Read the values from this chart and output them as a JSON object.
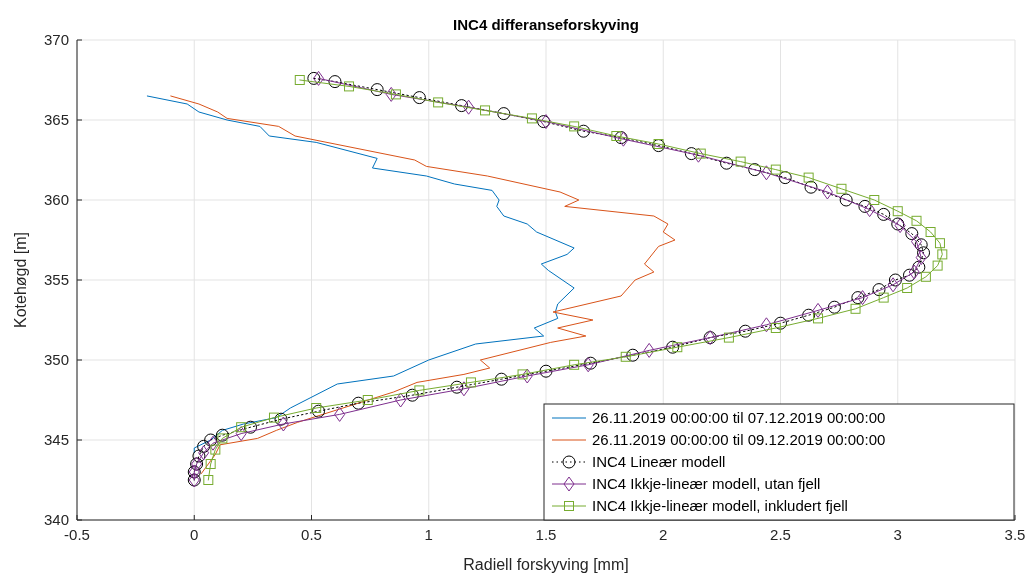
{
  "chart_data": {
    "type": "line",
    "title": "INC4 differanseforskyving",
    "xlabel": "Radiell forskyving [mm]",
    "ylabel": "Kotehøgd [m]",
    "xlim": [
      -0.5,
      3.5
    ],
    "xticks": [
      -0.5,
      0,
      0.5,
      1,
      1.5,
      2,
      2.5,
      3,
      3.5
    ],
    "ylim": [
      340,
      370
    ],
    "yticks": [
      340,
      345,
      350,
      355,
      360,
      365,
      370
    ],
    "grid": true,
    "legend": "bottom right",
    "series": [
      {
        "name": "26.11.2019 00:00:00 til 07.12.2019 00:00:00",
        "color": "#0072bd",
        "marker": "none",
        "line_style": "solid",
        "x": [
          -0.2,
          -0.03,
          0.02,
          0.14,
          0.28,
          0.32,
          0.52,
          0.78,
          0.76,
          0.99,
          1.11,
          1.27,
          1.3,
          1.29,
          1.32,
          1.42,
          1.46,
          1.62,
          1.59,
          1.48,
          1.51,
          1.62,
          1.55,
          1.54,
          1.55,
          1.45,
          1.49,
          1.2,
          1.0,
          0.85,
          0.61,
          0.41,
          0.35,
          0.21,
          0.12,
          0.07,
          0.0,
          0.0
        ],
        "values": [
          366.5,
          366.0,
          365.5,
          365.0,
          364.6,
          364.0,
          363.6,
          362.6,
          362.0,
          361.5,
          361.0,
          360.6,
          360.0,
          359.6,
          359.0,
          358.5,
          358.0,
          357.0,
          356.6,
          356.0,
          355.6,
          354.5,
          353.5,
          353.0,
          352.6,
          352.0,
          351.5,
          351.0,
          350.0,
          349.0,
          348.5,
          347.0,
          346.4,
          346.0,
          345.6,
          345.0,
          344.5,
          344.2
        ]
      },
      {
        "name": "26.11.2019 00:00:00 til 09.12.2019 00:00:00",
        "color": "#d95319",
        "marker": "none",
        "line_style": "solid",
        "x": [
          -0.1,
          0.02,
          0.1,
          0.14,
          0.36,
          0.43,
          0.94,
          0.99,
          1.25,
          1.56,
          1.64,
          1.58,
          1.96,
          2.02,
          2.0,
          2.05,
          1.98,
          1.92,
          1.96,
          1.88,
          1.82,
          1.53,
          1.7,
          1.55,
          1.67,
          1.52,
          1.22,
          1.26,
          1.15,
          0.95,
          0.85,
          0.44,
          0.35,
          0.27,
          0.11,
          0.09,
          0.05,
          0.03
        ],
        "values": [
          366.5,
          366.0,
          365.5,
          365.1,
          364.6,
          364.0,
          362.5,
          362.1,
          361.5,
          360.5,
          360.0,
          359.6,
          359.0,
          358.5,
          358.0,
          357.5,
          357.1,
          356.0,
          355.5,
          355.0,
          354.0,
          353.0,
          352.5,
          352.0,
          351.5,
          351.1,
          350.0,
          349.5,
          349.1,
          348.6,
          348.0,
          346.1,
          345.6,
          345.1,
          344.7,
          344.1,
          343.3,
          342.9
        ]
      },
      {
        "name": "INC4 Lineær modell",
        "color": "#000000",
        "marker": "circle",
        "line_style": "dotted",
        "x": [
          0.51,
          0.6,
          0.78,
          0.96,
          1.14,
          1.32,
          1.49,
          1.66,
          1.82,
          1.98,
          2.12,
          2.27,
          2.39,
          2.52,
          2.63,
          2.78,
          2.86,
          2.94,
          3.0,
          3.06,
          3.1,
          3.11,
          3.09,
          3.05,
          2.99,
          2.92,
          2.83,
          2.73,
          2.62,
          2.5,
          2.35,
          2.2,
          2.04,
          1.87,
          1.69,
          1.5,
          1.31,
          1.12,
          0.93,
          0.7,
          0.53,
          0.37,
          0.24,
          0.12,
          0.07,
          0.04,
          0.02,
          0.01,
          0.0,
          0.0
        ],
        "values": [
          367.6,
          367.4,
          366.9,
          366.4,
          365.9,
          365.4,
          364.9,
          364.3,
          363.9,
          363.4,
          362.9,
          362.3,
          361.9,
          361.4,
          360.8,
          360.0,
          359.6,
          359.1,
          358.5,
          357.9,
          357.2,
          356.7,
          355.8,
          355.3,
          355.0,
          354.4,
          353.9,
          353.3,
          352.8,
          352.3,
          351.8,
          351.4,
          350.8,
          350.3,
          349.8,
          349.3,
          348.8,
          348.3,
          347.8,
          347.3,
          346.8,
          346.3,
          345.8,
          345.3,
          345.0,
          344.6,
          344.0,
          343.5,
          343.0,
          342.5
        ]
      },
      {
        "name": "INC4 Ikkje-lineær modell, utan fjell",
        "color": "#7e2f8e",
        "marker": "diamond",
        "line_style": "solid",
        "x": [
          0.53,
          0.84,
          1.17,
          1.5,
          1.83,
          2.15,
          2.44,
          2.7,
          2.88,
          3.01,
          3.08,
          3.1,
          3.07,
          2.98,
          2.85,
          2.66,
          2.44,
          2.2,
          1.94,
          1.68,
          1.42,
          1.15,
          0.88,
          0.62,
          0.38,
          0.2,
          0.08,
          0.04,
          0.01,
          0.0,
          0.0
        ],
        "values": [
          367.6,
          366.6,
          365.8,
          364.9,
          363.8,
          362.8,
          361.7,
          360.5,
          359.4,
          358.4,
          357.4,
          356.4,
          355.5,
          354.7,
          353.9,
          353.1,
          352.2,
          351.4,
          350.6,
          349.7,
          349.0,
          348.2,
          347.5,
          346.6,
          346.0,
          345.4,
          344.8,
          344.2,
          343.5,
          343.0,
          342.5
        ]
      },
      {
        "name": "INC4 Ikkje-lineær modell, inkludert fjell",
        "color": "#77ac30",
        "marker": "square",
        "line_style": "solid",
        "x": [
          0.45,
          0.66,
          0.86,
          1.04,
          1.24,
          1.44,
          1.62,
          1.8,
          1.98,
          2.16,
          2.33,
          2.48,
          2.62,
          2.76,
          2.9,
          3.0,
          3.08,
          3.14,
          3.18,
          3.19,
          3.17,
          3.12,
          3.04,
          2.94,
          2.82,
          2.66,
          2.48,
          2.28,
          2.06,
          1.84,
          1.62,
          1.4,
          1.18,
          0.96,
          0.74,
          0.52,
          0.34,
          0.2,
          0.12,
          0.09,
          0.07,
          0.06
        ],
        "values": [
          367.5,
          367.1,
          366.6,
          366.1,
          365.6,
          365.1,
          364.6,
          364.0,
          363.5,
          362.9,
          362.4,
          361.9,
          361.4,
          360.7,
          360.0,
          359.3,
          358.7,
          358.0,
          357.3,
          356.6,
          355.9,
          355.2,
          354.5,
          353.9,
          353.2,
          352.6,
          352.0,
          351.4,
          350.8,
          350.2,
          349.7,
          349.1,
          348.6,
          348.1,
          347.5,
          347.0,
          346.4,
          345.8,
          345.1,
          344.4,
          343.5,
          342.5
        ]
      }
    ]
  }
}
